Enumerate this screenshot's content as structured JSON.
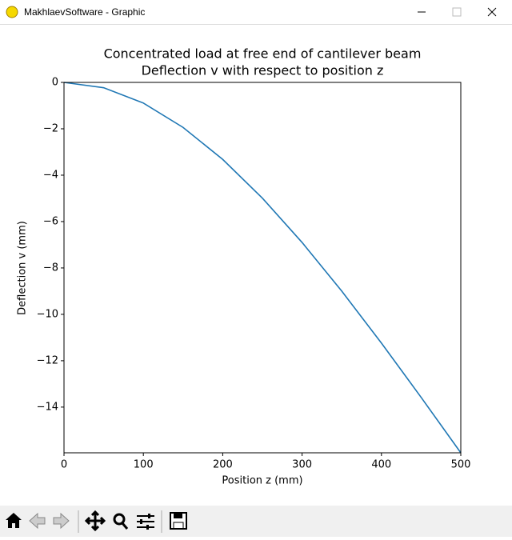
{
  "window": {
    "title": "MakhlaevSoftware - Graphic"
  },
  "chart_data": {
    "type": "line",
    "title": "Concentrated load at free end of cantilever beam",
    "subtitle": "Deflection v with respect to position z",
    "x_label": "Position z (mm)",
    "y_label": "Deflection v (mm)",
    "x": [
      0,
      50,
      100,
      150,
      200,
      250,
      300,
      350,
      400,
      450,
      500
    ],
    "series": [
      {
        "color": "#1f77b4",
        "values": [
          0,
          -0.23,
          -0.89,
          -1.94,
          -3.32,
          -4.99,
          -6.9,
          -9.0,
          -11.24,
          -13.58,
          -15.97
        ]
      }
    ],
    "xlim": [
      0,
      500
    ],
    "ylim": [
      -15.97,
      0
    ],
    "xticks": [
      0,
      100,
      200,
      300,
      400,
      500
    ],
    "yticks": [
      {
        "value": 0,
        "label": "0"
      },
      {
        "value": -2,
        "label": "−2"
      },
      {
        "value": -4,
        "label": "−4"
      },
      {
        "value": -6,
        "label": "−6"
      },
      {
        "value": -8,
        "label": "−8"
      },
      {
        "value": -10,
        "label": "−10"
      },
      {
        "value": -12,
        "label": "−12"
      },
      {
        "value": -14,
        "label": "−14"
      }
    ],
    "grid": false
  }
}
